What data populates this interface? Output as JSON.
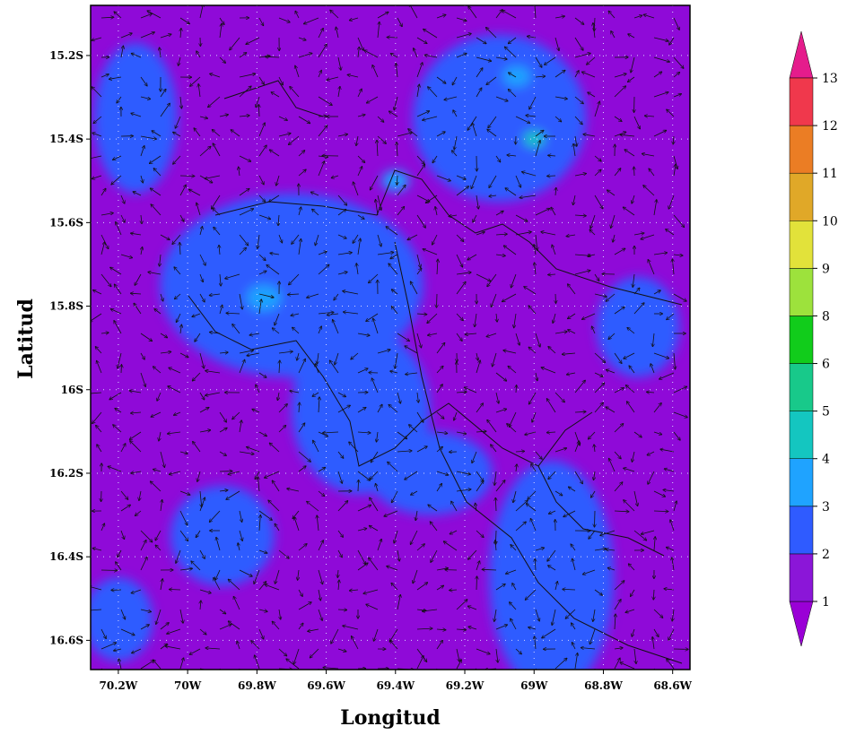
{
  "chart_data": {
    "type": "heatmap",
    "title": "",
    "xlabel": "Longitud",
    "ylabel": "Latitud",
    "xlim": [
      -70.28,
      -68.55
    ],
    "ylim": [
      -16.67,
      -15.08
    ],
    "x_ticks": [
      {
        "value": -70.2,
        "label": "70.2W"
      },
      {
        "value": -70.0,
        "label": "70W"
      },
      {
        "value": -69.8,
        "label": "69.8W"
      },
      {
        "value": -69.6,
        "label": "69.6W"
      },
      {
        "value": -69.4,
        "label": "69.4W"
      },
      {
        "value": -69.2,
        "label": "69.2W"
      },
      {
        "value": -69.0,
        "label": "69W"
      },
      {
        "value": -68.8,
        "label": "68.8W"
      },
      {
        "value": -68.6,
        "label": "68.6W"
      }
    ],
    "y_ticks": [
      {
        "value": -15.2,
        "label": "15.2S"
      },
      {
        "value": -15.4,
        "label": "15.4S"
      },
      {
        "value": -15.6,
        "label": "15.6S"
      },
      {
        "value": -15.8,
        "label": "15.8S"
      },
      {
        "value": -16.0,
        "label": "16S"
      },
      {
        "value": -16.2,
        "label": "16.2S"
      },
      {
        "value": -16.4,
        "label": "16.4S"
      },
      {
        "value": -16.6,
        "label": "16.6S"
      }
    ],
    "grid": true,
    "colorbar": {
      "position": "right",
      "levels": [
        "1",
        "2",
        "3",
        "4",
        "5",
        "6",
        "8",
        "9",
        "10",
        "11",
        "12",
        "13"
      ],
      "colors": [
        "#9a00d6",
        "#8b16d8",
        "#2f5bff",
        "#1fa3ff",
        "#14c6c0",
        "#18c98a",
        "#11cc1b",
        "#9de23c",
        "#e2e23a",
        "#e0a828",
        "#eb7d24",
        "#f0384c",
        "#e51c8c"
      ]
    },
    "field_regions": [
      {
        "lon": -69.75,
        "lat": -15.72,
        "level": 3,
        "radius_deg": 0.2
      },
      {
        "lon": -69.55,
        "lat": -15.95,
        "level": 3,
        "radius_deg": 0.15
      },
      {
        "lon": -69.12,
        "lat": -15.32,
        "level": 3,
        "radius_deg": 0.13
      },
      {
        "lon": -68.95,
        "lat": -16.3,
        "level": 3,
        "radius_deg": 0.07
      },
      {
        "lon": -68.98,
        "lat": -16.6,
        "level": 3,
        "radius_deg": 0.08
      },
      {
        "lon": -69.78,
        "lat": -15.78,
        "level": 4,
        "radius_deg": 0.05
      },
      {
        "lon": -69.4,
        "lat": -15.5,
        "level": 4,
        "radius_deg": 0.04
      },
      {
        "lon": -69.05,
        "lat": -15.25,
        "level": 4,
        "radius_deg": 0.04
      },
      {
        "lon": -69.0,
        "lat": -15.4,
        "level": 5,
        "radius_deg": 0.03
      }
    ],
    "wind_vectors": "dense arrow field over domain"
  }
}
